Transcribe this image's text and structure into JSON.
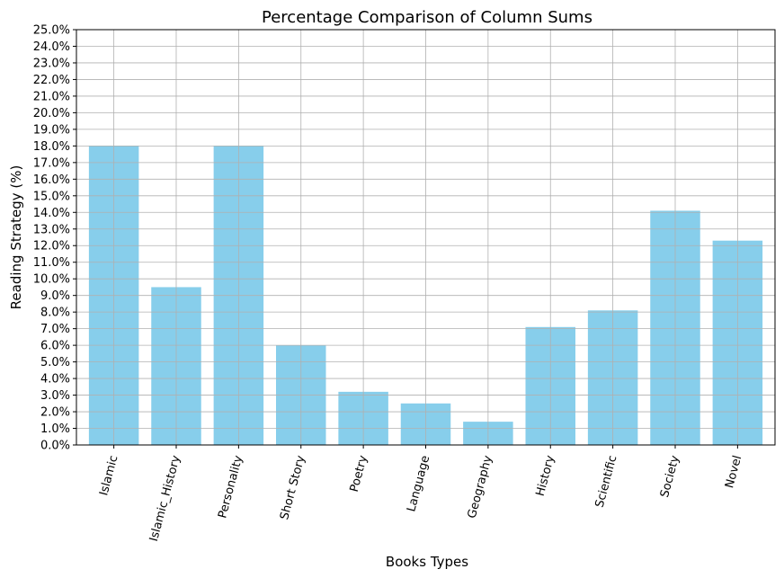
{
  "chart_data": {
    "type": "bar",
    "title": "Percentage Comparison of Column Sums",
    "xlabel": "Books Types",
    "ylabel": "Reading Strategy (%)",
    "categories": [
      "Islamic",
      "Islamic_History",
      "Personality",
      "Short Story",
      "Poetry",
      "Language",
      "Geography",
      "History",
      "Scientific",
      "Society",
      "Novel"
    ],
    "values": [
      18.0,
      9.5,
      18.0,
      6.0,
      3.2,
      2.5,
      1.4,
      7.1,
      8.1,
      14.1,
      12.3
    ],
    "ylim": [
      0,
      25
    ],
    "ytick_step": 1,
    "ytick_format": "percent-1dp",
    "bar_color": "#87ceeb",
    "grid": true,
    "xtick_rotation_deg": -75
  }
}
